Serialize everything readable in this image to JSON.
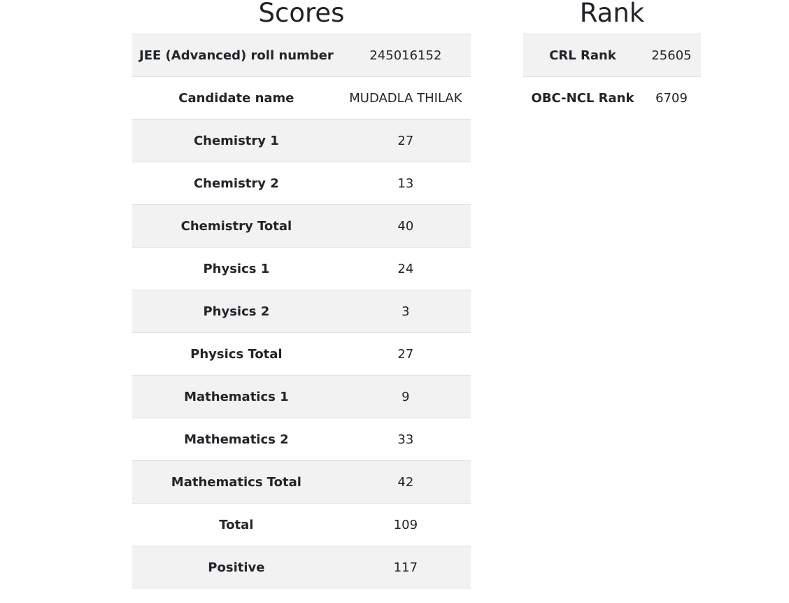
{
  "scores": {
    "title": "Scores",
    "rows": [
      {
        "label": "JEE (Advanced) roll number",
        "value": "245016152"
      },
      {
        "label": "Candidate name",
        "value": "MUDADLA THILAK"
      },
      {
        "label": "Chemistry 1",
        "value": "27"
      },
      {
        "label": "Chemistry 2",
        "value": "13"
      },
      {
        "label": "Chemistry Total",
        "value": "40"
      },
      {
        "label": "Physics 1",
        "value": "24"
      },
      {
        "label": "Physics 2",
        "value": "3"
      },
      {
        "label": "Physics Total",
        "value": "27"
      },
      {
        "label": "Mathematics 1",
        "value": "9"
      },
      {
        "label": "Mathematics 2",
        "value": "33"
      },
      {
        "label": "Mathematics Total",
        "value": "42"
      },
      {
        "label": "Total",
        "value": "109"
      },
      {
        "label": "Positive",
        "value": "117"
      }
    ]
  },
  "rank": {
    "title": "Rank",
    "rows": [
      {
        "label": "CRL Rank",
        "value": "25605"
      },
      {
        "label": "OBC-NCL Rank",
        "value": "6709"
      }
    ]
  },
  "colors": {
    "stripe": "#f2f2f2",
    "text": "#212529",
    "border": "#dee2e6"
  }
}
